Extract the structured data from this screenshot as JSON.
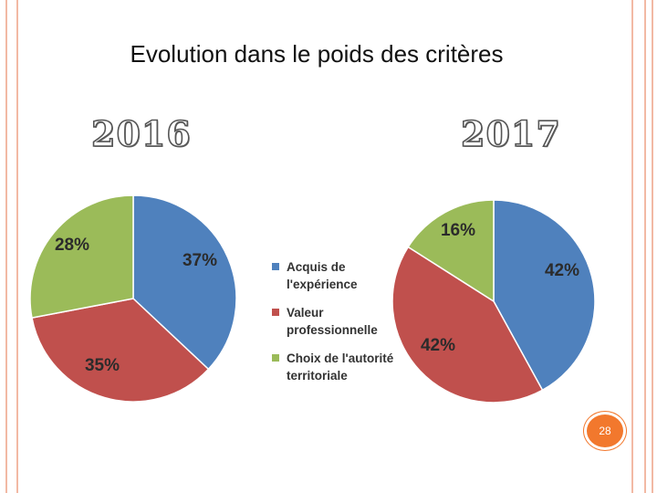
{
  "title": "Evolution dans le poids des critères",
  "page_number": "28",
  "colors": {
    "acquis": "#4f81bd",
    "valeur": "#c0504d",
    "choix": "#9bbb59",
    "accent": "#f2782d"
  },
  "chart_data": [
    {
      "type": "pie",
      "title": "2016",
      "slices": [
        {
          "name": "Acquis de l'expérience",
          "value": 37,
          "label": "37%"
        },
        {
          "name": "Valeur professionnelle",
          "value": 35,
          "label": "35%"
        },
        {
          "name": "Choix de l'autorité territoriale",
          "value": 28,
          "label": "28%"
        }
      ]
    },
    {
      "type": "pie",
      "title": "2017",
      "slices": [
        {
          "name": "Acquis de l'expérience",
          "value": 42,
          "label": "42%"
        },
        {
          "name": "Valeur professionnelle",
          "value": 42,
          "label": "42%"
        },
        {
          "name": "Choix de l'autorité territoriale",
          "value": 16,
          "label": "16%"
        }
      ]
    }
  ],
  "legend": [
    {
      "label": "Acquis de l'expérience"
    },
    {
      "label": "Valeur professionnelle"
    },
    {
      "label": "Choix de l'autorité territoriale"
    }
  ]
}
